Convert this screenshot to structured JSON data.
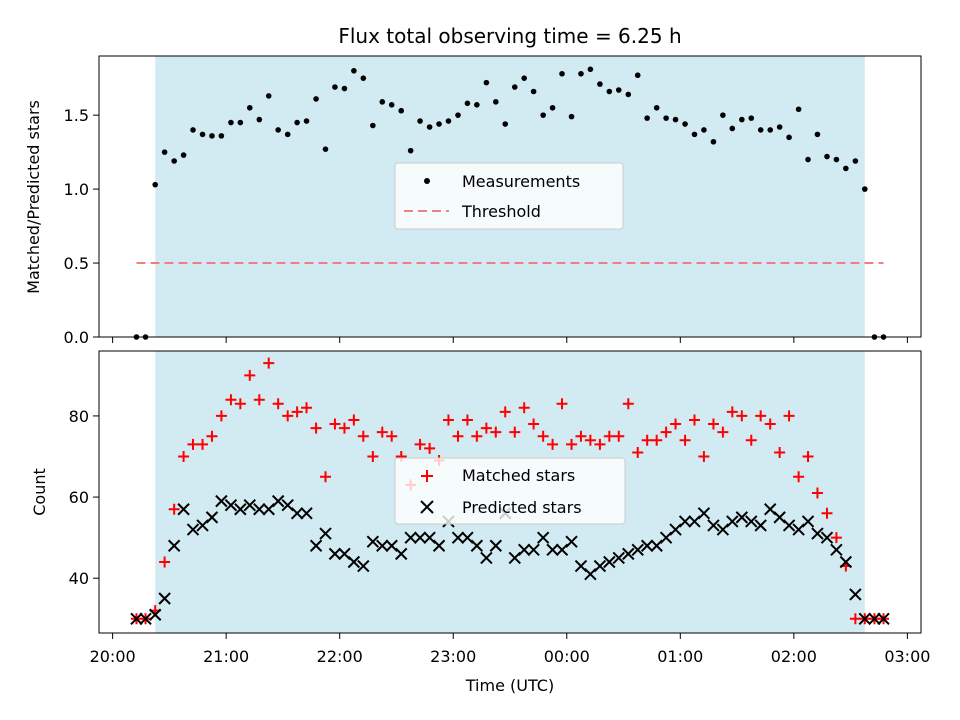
{
  "title": "Flux total observing time = 6.25 h",
  "colors": {
    "shade": "#add8e6",
    "measurements": "#000000",
    "threshold": "#f08080",
    "matched": "#ff0000",
    "predicted": "#000000"
  },
  "chart_data": [
    {
      "type": "scatter",
      "title": "Flux total observing time = 6.25 h",
      "xlabel": "",
      "ylabel": "Matched/Predicted stars",
      "x_unit": "hours since 20:00 UTC",
      "xlim": [
        -0.12,
        7.12
      ],
      "ylim": [
        0.0,
        1.9
      ],
      "yticks": [
        0.0,
        0.5,
        1.0,
        1.5
      ],
      "ytick_labels": [
        "0.0",
        "0.5",
        "1.0",
        "1.5"
      ],
      "shaded_span": [
        0.375,
        6.625
      ],
      "legend": {
        "position": "center",
        "entries": [
          "Measurements",
          "Threshold"
        ]
      },
      "threshold": {
        "name": "Threshold",
        "y": 0.5,
        "x_range": [
          0.21,
          6.79
        ]
      },
      "series": [
        {
          "name": "Measurements",
          "x": [
            0.21,
            0.29,
            0.375,
            0.458,
            0.542,
            0.625,
            0.708,
            0.792,
            0.875,
            0.958,
            1.042,
            1.125,
            1.208,
            1.292,
            1.375,
            1.458,
            1.542,
            1.625,
            1.708,
            1.792,
            1.875,
            1.958,
            2.042,
            2.125,
            2.208,
            2.292,
            2.375,
            2.458,
            2.542,
            2.625,
            2.708,
            2.792,
            2.875,
            2.958,
            3.042,
            3.125,
            3.208,
            3.292,
            3.375,
            3.458,
            3.542,
            3.625,
            3.708,
            3.792,
            3.875,
            3.958,
            4.042,
            4.125,
            4.208,
            4.292,
            4.375,
            4.458,
            4.542,
            4.625,
            4.708,
            4.792,
            4.875,
            4.958,
            5.042,
            5.125,
            5.208,
            5.292,
            5.375,
            5.458,
            5.542,
            5.625,
            5.708,
            5.792,
            5.875,
            5.958,
            6.042,
            6.125,
            6.208,
            6.292,
            6.375,
            6.458,
            6.542,
            6.625,
            6.71,
            6.79
          ],
          "y": [
            0.0,
            0.0,
            1.03,
            1.25,
            1.19,
            1.23,
            1.4,
            1.37,
            1.36,
            1.36,
            1.45,
            1.45,
            1.55,
            1.47,
            1.63,
            1.4,
            1.37,
            1.45,
            1.46,
            1.61,
            1.27,
            1.69,
            1.68,
            1.8,
            1.75,
            1.43,
            1.59,
            1.57,
            1.53,
            1.26,
            1.46,
            1.42,
            1.44,
            1.46,
            1.5,
            1.58,
            1.57,
            1.72,
            1.59,
            1.44,
            1.69,
            1.75,
            1.66,
            1.5,
            1.55,
            1.78,
            1.49,
            1.78,
            1.81,
            1.71,
            1.66,
            1.67,
            1.64,
            1.77,
            1.48,
            1.55,
            1.48,
            1.47,
            1.44,
            1.37,
            1.4,
            1.32,
            1.5,
            1.41,
            1.47,
            1.48,
            1.4,
            1.4,
            1.42,
            1.35,
            1.54,
            1.2,
            1.37,
            1.22,
            1.2,
            1.14,
            1.19,
            1.0,
            0.0,
            0.0
          ]
        }
      ]
    },
    {
      "type": "scatter",
      "xlabel": "Time (UTC)",
      "ylabel": "Count",
      "x_unit": "hours since 20:00 UTC",
      "xlim": [
        -0.12,
        7.12
      ],
      "ylim": [
        26.5,
        96.0
      ],
      "xticks": [
        0,
        1,
        2,
        3,
        4,
        5,
        6,
        7
      ],
      "xtick_labels": [
        "20:00",
        "21:00",
        "22:00",
        "23:00",
        "00:00",
        "01:00",
        "02:00",
        "03:00"
      ],
      "yticks": [
        40,
        60,
        80
      ],
      "ytick_labels": [
        "40",
        "60",
        "80"
      ],
      "shaded_span": [
        0.375,
        6.625
      ],
      "legend": {
        "position": "center",
        "entries": [
          "Matched stars",
          "Predicted stars"
        ]
      },
      "series": [
        {
          "name": "Matched stars",
          "x": [
            0.21,
            0.29,
            0.375,
            0.458,
            0.542,
            0.625,
            0.708,
            0.792,
            0.875,
            0.958,
            1.042,
            1.125,
            1.208,
            1.292,
            1.375,
            1.458,
            1.542,
            1.625,
            1.708,
            1.792,
            1.875,
            1.958,
            2.042,
            2.125,
            2.208,
            2.292,
            2.375,
            2.458,
            2.542,
            2.625,
            2.708,
            2.792,
            2.875,
            2.958,
            3.042,
            3.125,
            3.208,
            3.292,
            3.375,
            3.458,
            3.542,
            3.625,
            3.708,
            3.792,
            3.875,
            3.958,
            4.042,
            4.125,
            4.208,
            4.292,
            4.375,
            4.458,
            4.542,
            4.625,
            4.708,
            4.792,
            4.875,
            4.958,
            5.042,
            5.125,
            5.208,
            5.292,
            5.375,
            5.458,
            5.542,
            5.625,
            5.708,
            5.792,
            5.875,
            5.958,
            6.042,
            6.125,
            6.208,
            6.292,
            6.375,
            6.458,
            6.542,
            6.625,
            6.71,
            6.79
          ],
          "y": [
            30,
            30,
            32,
            44,
            57,
            70,
            73,
            73,
            75,
            80,
            84,
            83,
            90,
            84,
            93,
            83,
            80,
            81,
            82,
            77,
            65,
            78,
            77,
            79,
            75,
            70,
            76,
            75,
            70,
            63,
            73,
            72,
            69,
            79,
            75,
            79,
            75,
            77,
            76,
            81,
            76,
            82,
            78,
            75,
            73,
            83,
            73,
            75,
            74,
            73,
            75,
            75,
            83,
            71,
            74,
            74,
            76,
            78,
            74,
            79,
            70,
            78,
            76,
            81,
            80,
            74,
            80,
            78,
            71,
            80,
            65,
            70,
            61,
            56,
            50,
            43,
            30,
            30,
            30,
            30
          ]
        },
        {
          "name": "Predicted stars",
          "x": [
            0.21,
            0.29,
            0.375,
            0.458,
            0.542,
            0.625,
            0.708,
            0.792,
            0.875,
            0.958,
            1.042,
            1.125,
            1.208,
            1.292,
            1.375,
            1.458,
            1.542,
            1.625,
            1.708,
            1.792,
            1.875,
            1.958,
            2.042,
            2.125,
            2.208,
            2.292,
            2.375,
            2.458,
            2.542,
            2.625,
            2.708,
            2.792,
            2.875,
            2.958,
            3.042,
            3.125,
            3.208,
            3.292,
            3.375,
            3.458,
            3.542,
            3.625,
            3.708,
            3.792,
            3.875,
            3.958,
            4.042,
            4.125,
            4.208,
            4.292,
            4.375,
            4.458,
            4.542,
            4.625,
            4.708,
            4.792,
            4.875,
            4.958,
            5.042,
            5.125,
            5.208,
            5.292,
            5.375,
            5.458,
            5.542,
            5.625,
            5.708,
            5.792,
            5.875,
            5.958,
            6.042,
            6.125,
            6.208,
            6.292,
            6.375,
            6.458,
            6.542,
            6.625,
            6.71,
            6.79
          ],
          "y": [
            30,
            30,
            31,
            35,
            48,
            57,
            52,
            53,
            55,
            59,
            58,
            57,
            58,
            57,
            57,
            59,
            58,
            56,
            56,
            48,
            51,
            46,
            46,
            44,
            43,
            49,
            48,
            48,
            46,
            50,
            50,
            50,
            48,
            54,
            50,
            50,
            48,
            45,
            48,
            56,
            45,
            47,
            47,
            50,
            47,
            47,
            49,
            43,
            41,
            43,
            44,
            45,
            46,
            47,
            48,
            48,
            50,
            52,
            54,
            54,
            56,
            53,
            52,
            54,
            55,
            54,
            53,
            57,
            55,
            53,
            52,
            54,
            51,
            50,
            47,
            44,
            36,
            30,
            30,
            30
          ]
        }
      ]
    }
  ]
}
